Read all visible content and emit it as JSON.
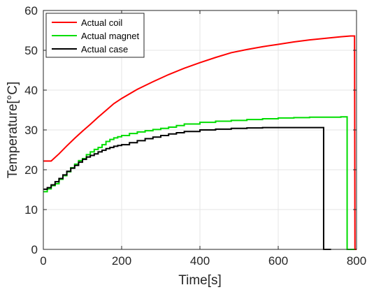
{
  "chart_data": {
    "type": "line",
    "title": "",
    "xlabel": "Time[s]",
    "ylabel": "Temperature[°C]",
    "xlim": [
      0,
      800
    ],
    "ylim": [
      0,
      60
    ],
    "xticks": [
      0,
      200,
      400,
      600,
      800
    ],
    "yticks": [
      0,
      10,
      20,
      30,
      40,
      50,
      60
    ],
    "grid": true,
    "legend_position": "top-left",
    "series": [
      {
        "name": "Actual coil",
        "color": "#ff0000",
        "x": [
          0,
          20,
          40,
          60,
          80,
          100,
          120,
          140,
          160,
          180,
          200,
          240,
          280,
          320,
          360,
          400,
          440,
          480,
          520,
          560,
          600,
          640,
          680,
          720,
          760,
          785,
          795,
          796,
          800
        ],
        "y": [
          22.2,
          22.2,
          24,
          26,
          27.9,
          29.7,
          31.4,
          33.2,
          34.9,
          36.6,
          37.9,
          40.2,
          42.1,
          43.9,
          45.5,
          46.9,
          48.2,
          49.4,
          50.2,
          50.9,
          51.5,
          52.1,
          52.6,
          53,
          53.4,
          53.6,
          53.6,
          0,
          0
        ]
      },
      {
        "name": "Actual magnet",
        "color": "#00dd00",
        "x": [
          0,
          10,
          20,
          30,
          40,
          50,
          60,
          70,
          80,
          90,
          100,
          110,
          120,
          130,
          140,
          150,
          160,
          170,
          180,
          190,
          200,
          220,
          240,
          260,
          280,
          300,
          320,
          340,
          360,
          400,
          440,
          480,
          520,
          560,
          600,
          640,
          680,
          720,
          760,
          775,
          776,
          795
        ],
        "y": [
          14.5,
          15.2,
          16,
          16.5,
          17.6,
          18.5,
          19.5,
          20.5,
          21.4,
          22.3,
          22.8,
          23.8,
          24.5,
          25.1,
          25.6,
          26.3,
          27.1,
          27.6,
          28,
          28.3,
          28.6,
          29.1,
          29.5,
          29.8,
          30.1,
          30.4,
          30.7,
          31.1,
          31.5,
          31.9,
          32.2,
          32.4,
          32.6,
          32.8,
          33,
          33.1,
          33.2,
          33.2,
          33.3,
          33.3,
          0,
          0
        ]
      },
      {
        "name": "Actual case",
        "color": "#000000",
        "x": [
          0,
          10,
          20,
          30,
          40,
          50,
          60,
          70,
          80,
          90,
          100,
          110,
          120,
          130,
          140,
          150,
          160,
          170,
          180,
          190,
          200,
          220,
          240,
          260,
          280,
          300,
          320,
          340,
          360,
          400,
          440,
          480,
          520,
          560,
          600,
          640,
          680,
          715,
          716,
          735
        ],
        "y": [
          15.1,
          15.5,
          16.2,
          17,
          17.8,
          18.7,
          19.6,
          20.4,
          21.1,
          21.9,
          22.6,
          23.2,
          23.6,
          24,
          24.5,
          24.9,
          25.3,
          25.6,
          25.9,
          26.1,
          26.3,
          26.8,
          27.3,
          27.8,
          28.2,
          28.6,
          29,
          29.3,
          29.6,
          30,
          30.2,
          30.4,
          30.5,
          30.6,
          30.6,
          30.6,
          30.6,
          30.6,
          0,
          0
        ]
      }
    ]
  }
}
